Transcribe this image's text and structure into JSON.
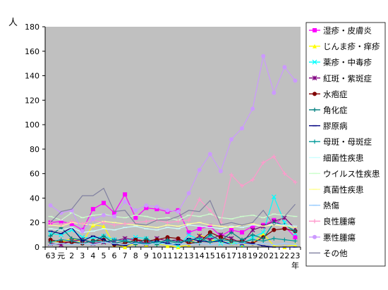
{
  "chart_data": {
    "type": "line",
    "y_unit_label": "人",
    "x_unit_label": "年",
    "ylim": [
      0,
      180
    ],
    "ytick_step": 20,
    "grid": false,
    "legend_position": "right",
    "plot_background": "#c0c0c0",
    "categories": [
      "63",
      "元",
      "2",
      "3",
      "4",
      "5",
      "6",
      "7",
      "8",
      "9",
      "10",
      "11",
      "12",
      "13",
      "14",
      "15",
      "16",
      "17",
      "18",
      "19",
      "20",
      "21",
      "22",
      "23"
    ],
    "series": [
      {
        "name": "湿疹・皮膚炎",
        "color": "#ff00ff",
        "marker": "square",
        "values": [
          20,
          21,
          19,
          14,
          31,
          36,
          28,
          43,
          24,
          32,
          31,
          29,
          30,
          12,
          15,
          17,
          9,
          14,
          12,
          17,
          18,
          22,
          17,
          8
        ]
      },
      {
        "name": "じんま疹・痒疹",
        "color": "#ffff00",
        "marker": "triangle",
        "values": [
          5,
          4,
          7,
          4,
          18,
          17,
          2,
          0,
          3,
          2,
          3,
          1,
          0,
          2,
          10,
          6,
          4,
          3,
          2,
          3,
          11,
          1,
          0,
          2
        ]
      },
      {
        "name": "薬疹・中毒疹",
        "color": "#00ffff",
        "marker": "x",
        "values": [
          11,
          10,
          14,
          8,
          7,
          9,
          6,
          5,
          8,
          7,
          3,
          4,
          1,
          10,
          6,
          9,
          3,
          4,
          2,
          8,
          12,
          41,
          20,
          11
        ]
      },
      {
        "name": "紅斑・紫斑症",
        "color": "#800080",
        "marker": "star",
        "values": [
          3,
          2,
          5,
          6,
          3,
          4,
          5,
          7,
          6,
          3,
          7,
          5,
          6,
          4,
          9,
          6,
          10,
          7,
          3,
          14,
          17,
          21,
          24,
          15
        ]
      },
      {
        "name": "水疱症",
        "color": "#800000",
        "marker": "circle",
        "values": [
          6,
          4,
          4,
          3,
          5,
          6,
          2,
          3,
          6,
          5,
          6,
          8,
          7,
          3,
          4,
          12,
          8,
          5,
          5,
          3,
          8,
          14,
          15,
          13
        ]
      },
      {
        "name": "角化症",
        "color": "#008080",
        "marker": "plus",
        "values": [
          9,
          16,
          7,
          6,
          4,
          9,
          3,
          5,
          2,
          7,
          2,
          6,
          4,
          5,
          3,
          10,
          5,
          12,
          6,
          10,
          7,
          20,
          18,
          13
        ]
      },
      {
        "name": "膠原病",
        "color": "#000080",
        "marker": "dash",
        "values": [
          13,
          11,
          16,
          5,
          9,
          6,
          2,
          1,
          4,
          2,
          5,
          3,
          2,
          7,
          5,
          4,
          5,
          2,
          3,
          3,
          1,
          0,
          0,
          0
        ]
      },
      {
        "name": "母斑・母斑症",
        "color": "#009999",
        "marker": "plus",
        "values": [
          4,
          6,
          5,
          3,
          5,
          4,
          6,
          5,
          4,
          3,
          4,
          5,
          3,
          6,
          7,
          4,
          6,
          5,
          4,
          6,
          5,
          7,
          6,
          5
        ]
      },
      {
        "name": "細菌性疾患",
        "color": "#ccffff",
        "marker": "dash",
        "values": [
          15,
          14,
          16,
          12,
          13,
          15,
          14,
          16,
          17,
          15,
          14,
          16,
          15,
          18,
          17,
          16,
          15,
          17,
          16,
          18,
          17,
          19,
          18,
          17
        ]
      },
      {
        "name": "ウイルス性疾患",
        "color": "#ccffcc",
        "marker": "dash",
        "values": [
          25,
          22,
          28,
          24,
          26,
          27,
          25,
          24,
          26,
          25,
          23,
          24,
          22,
          26,
          25,
          27,
          24,
          23,
          25,
          26,
          24,
          27,
          26,
          25
        ]
      },
      {
        "name": "真菌性疾患",
        "color": "#ffff99",
        "marker": "dash",
        "values": [
          18,
          17,
          20,
          19,
          18,
          21,
          20,
          19,
          18,
          17,
          16,
          18,
          17,
          19,
          20,
          18,
          17,
          16,
          18,
          19,
          17,
          18,
          17,
          16
        ]
      },
      {
        "name": "熱傷",
        "color": "#99ccff",
        "marker": "dash",
        "values": [
          2,
          3,
          2,
          3,
          2,
          4,
          3,
          2,
          3,
          2,
          3,
          2,
          3,
          2,
          3,
          2,
          3,
          2,
          3,
          2,
          3,
          2,
          3,
          2
        ]
      },
      {
        "name": "良性腫瘍",
        "color": "#ff99cc",
        "marker": "plus",
        "values": [
          20,
          18,
          21,
          19,
          22,
          20,
          18,
          19,
          20,
          21,
          22,
          20,
          21,
          22,
          39,
          30,
          20,
          59,
          50,
          55,
          69,
          74,
          60,
          53
        ]
      },
      {
        "name": "悪性腫瘍",
        "color": "#cc99ff",
        "marker": "circle",
        "values": [
          34,
          28,
          30,
          13,
          23,
          26,
          25,
          37,
          30,
          34,
          33,
          30,
          29,
          44,
          63,
          76,
          62,
          88,
          97,
          113,
          156,
          126,
          147,
          136
        ]
      },
      {
        "name": "その他",
        "color": "#8080a0",
        "marker": "none",
        "values": [
          20,
          29,
          31,
          42,
          42,
          48,
          29,
          30,
          19,
          18,
          22,
          22,
          25,
          30,
          29,
          38,
          18,
          20,
          18,
          20,
          30,
          18,
          25,
          35
        ]
      }
    ]
  }
}
